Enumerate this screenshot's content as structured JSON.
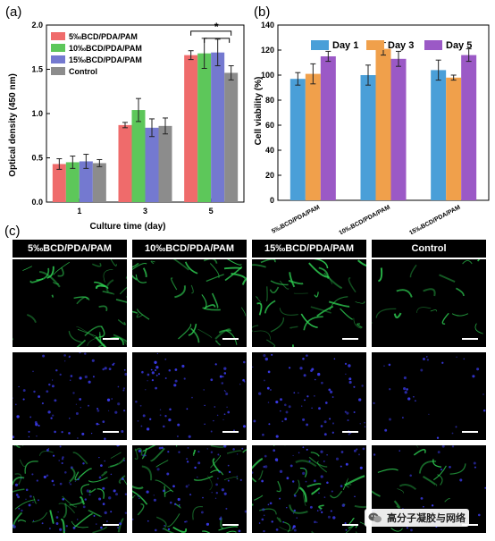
{
  "panels": {
    "a": "(a)",
    "b": "(b)",
    "c": "(c)"
  },
  "colors": {
    "s5": "#ef6b6b",
    "s10": "#5dc75a",
    "s15": "#7479d0",
    "control": "#8c8c8c",
    "day1": "#4a9fd8",
    "day3": "#f0a04b",
    "day5": "#9b59c6",
    "green_stain": "#2ecf52",
    "blue_stain": "#3a3ae8"
  },
  "chart_data": [
    {
      "type": "bar",
      "panel": "(a)",
      "xlabel": "Culture time (day)",
      "ylabel": "Optical density (450 nm)",
      "categories": [
        "1",
        "3",
        "5"
      ],
      "ylim": [
        0,
        2.0
      ],
      "yticks": [
        "0.0",
        "0.5",
        "1.0",
        "1.5",
        "2.0"
      ],
      "legend_position": "top-left",
      "series": [
        {
          "name": "5‰BCD/PDA/PAM",
          "color": "#ef6b6b",
          "values": [
            0.43,
            0.87,
            1.66
          ],
          "errors": [
            0.06,
            0.03,
            0.05
          ]
        },
        {
          "name": "10‰BCD/PDA/PAM",
          "color": "#5dc75a",
          "values": [
            0.45,
            1.04,
            1.68
          ],
          "errors": [
            0.07,
            0.13,
            0.17
          ]
        },
        {
          "name": "15‰BCD/PDA/PAM",
          "color": "#7479d0",
          "values": [
            0.46,
            0.84,
            1.69
          ],
          "errors": [
            0.08,
            0.1,
            0.15
          ]
        },
        {
          "name": "Control",
          "color": "#8c8c8c",
          "values": [
            0.44,
            0.86,
            1.46
          ],
          "errors": [
            0.04,
            0.09,
            0.08
          ]
        }
      ],
      "significance": {
        "label": "*",
        "category": "5"
      }
    },
    {
      "type": "bar",
      "panel": "(b)",
      "ylabel": "Cell viability (%)",
      "categories": [
        "5‰BCD/PDA/PAM",
        "10‰BCD/PDA/PAM",
        "15‰BCD/PDA/PAM"
      ],
      "ylim": [
        0,
        140
      ],
      "yticks": [
        "0",
        "20",
        "40",
        "60",
        "80",
        "100",
        "120",
        "140"
      ],
      "legend_position": "top, horizontal",
      "series": [
        {
          "name": "Day 1",
          "color": "#4a9fd8",
          "values": [
            97,
            100,
            104
          ],
          "errors": [
            5,
            8,
            8
          ]
        },
        {
          "name": "Day 3",
          "color": "#f0a04b",
          "values": [
            101,
            121,
            98
          ],
          "errors": [
            8,
            5,
            2
          ]
        },
        {
          "name": "Day 5",
          "color": "#9b59c6",
          "values": [
            115,
            113,
            116
          ],
          "errors": [
            4,
            6,
            5
          ]
        }
      ]
    }
  ],
  "grid": {
    "columns": [
      "5‰BCD/PDA/PAM",
      "10‰BCD/PDA/PAM",
      "15‰BCD/PDA/PAM",
      "Control"
    ],
    "rows": [
      "green",
      "blue",
      "merged"
    ]
  },
  "watermark": {
    "text": "高分子凝胶与网络"
  }
}
